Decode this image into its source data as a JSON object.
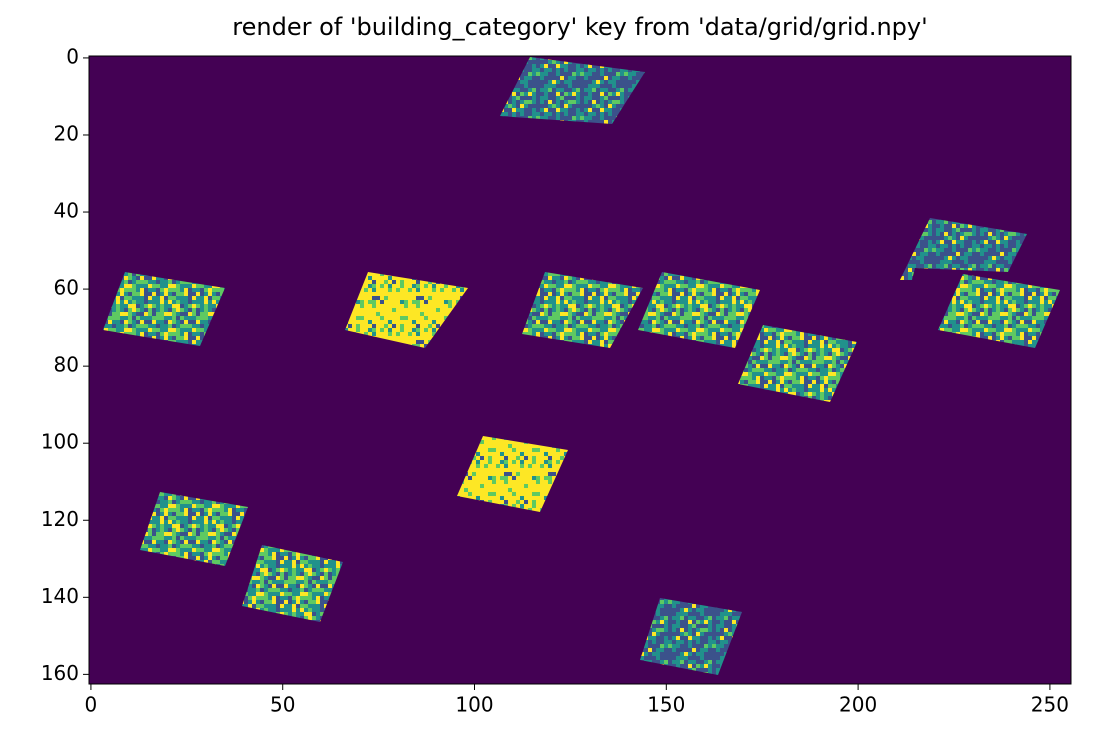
{
  "chart_data": {
    "type": "image",
    "title": "render of 'building_category' key from 'data/grid/grid.npy'",
    "xlim": [
      -0.5,
      255.5
    ],
    "ylim": [
      162.5,
      -0.5
    ],
    "xticks": [
      0,
      50,
      100,
      150,
      200,
      250
    ],
    "yticks": [
      0,
      20,
      40,
      60,
      80,
      100,
      120,
      140,
      160
    ],
    "colormap": "viridis"
  }
}
